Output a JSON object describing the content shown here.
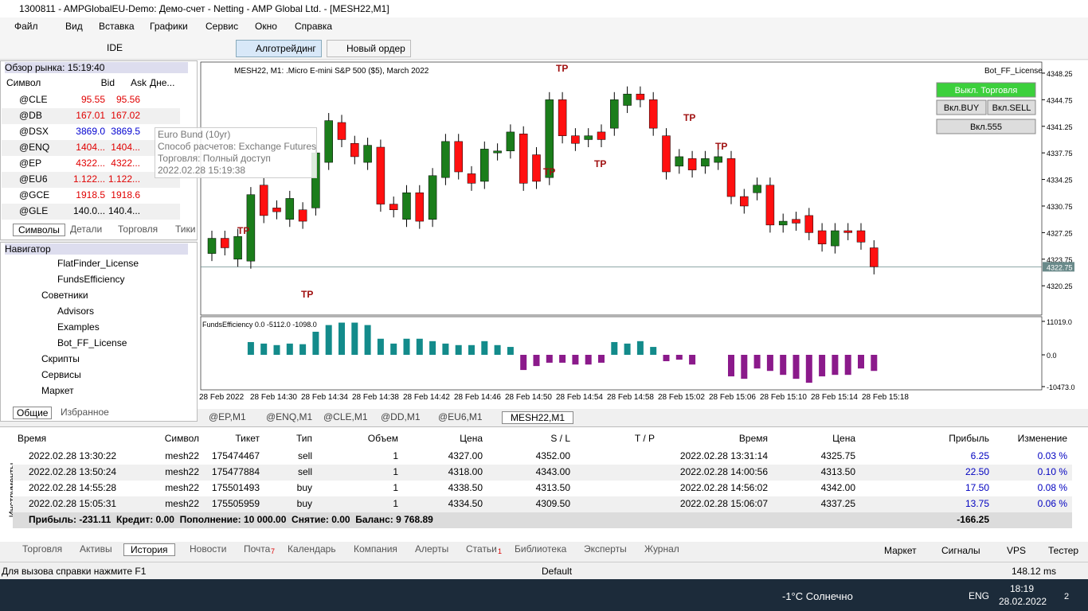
{
  "title_bar": {
    "title": "1300811 - AMPGlobalEU-Demo: Демо-счет - Netting - AMP Global Ltd. - [MESH22,M1]"
  },
  "menu": [
    "Файл",
    "Вид",
    "Вставка",
    "Графики",
    "Сервис",
    "Окно",
    "Справка"
  ],
  "toolbar": {
    "ide": "IDE",
    "algo": "Алготрейдинг",
    "new_order": "Новый ордер"
  },
  "market_watch": {
    "title": "Обзор рынка: 15:19:40",
    "columns": [
      "Символ",
      "Bid",
      "Ask",
      "Дне..."
    ],
    "rows": [
      {
        "symbol": "@CLE",
        "bid": "95.55",
        "ask": "95.56",
        "color": "#e00000"
      },
      {
        "symbol": "@DB",
        "bid": "167.01",
        "ask": "167.02",
        "color": "#e00000"
      },
      {
        "symbol": "@DSX",
        "bid": "3869.0",
        "ask": "3869.5",
        "color": "#0000d0"
      },
      {
        "symbol": "@ENQ",
        "bid": "1404...",
        "ask": "1404...",
        "color": "#e00000"
      },
      {
        "symbol": "@EP",
        "bid": "4322...",
        "ask": "4322...",
        "color": "#e00000"
      },
      {
        "symbol": "@EU6",
        "bid": "1.122...",
        "ask": "1.122...",
        "color": "#e00000"
      },
      {
        "symbol": "@GCE",
        "bid": "1918.5",
        "ask": "1918.6",
        "color": "#e00000"
      },
      {
        "symbol": "@GLE",
        "bid": "140.0...",
        "ask": "140.4...",
        "color": "#000000"
      }
    ],
    "tabs": [
      "Символы",
      "Детали",
      "Торговля",
      "Тики"
    ],
    "tooltip": [
      "Euro Bund (10yr)",
      "Способ расчетов: Exchange Futures",
      "Торговля: Полный доступ",
      "2022.02.28 15:19:38"
    ]
  },
  "navigator": {
    "title": "Навигатор",
    "items": [
      {
        "label": "FlatFinder_License",
        "level": 2
      },
      {
        "label": "FundsEfficiency",
        "level": 2
      },
      {
        "label": "Советники",
        "level": 1
      },
      {
        "label": "Advisors",
        "level": 2
      },
      {
        "label": "Examples",
        "level": 2
      },
      {
        "label": "Bot_FF_License",
        "level": 2
      },
      {
        "label": "Скрипты",
        "level": 1
      },
      {
        "label": "Сервисы",
        "level": 1
      },
      {
        "label": "Маркет",
        "level": 1
      }
    ],
    "tabs": [
      "Общие",
      "Избранное"
    ]
  },
  "chart": {
    "header": "MESH22, M1: .Micro E-mini S&P 500 ($5), March 2022",
    "expert": "Bot_FF_License",
    "buttons": [
      "Выкл. Торговля",
      "Вкл.BUY",
      "Вкл.SELL",
      "Вкл.555"
    ],
    "tp_label": "TP",
    "ylim": [
      4316.5,
      4349.5
    ],
    "yticks": [
      4348.25,
      4344.75,
      4341.25,
      4337.75,
      4334.25,
      4330.75,
      4327.25,
      4323.75,
      4320.25
    ],
    "last_price": 4322.75,
    "xticks": [
      "28 Feb 2022",
      "28 Feb 14:30",
      "28 Feb 14:34",
      "28 Feb 14:38",
      "28 Feb 14:42",
      "28 Feb 14:46",
      "28 Feb 14:50",
      "28 Feb 14:54",
      "28 Feb 14:58",
      "28 Feb 15:02",
      "28 Feb 15:06",
      "28 Feb 15:10",
      "28 Feb 15:14",
      "28 Feb 15:18"
    ],
    "up_color": "#1b7d1b",
    "down_color": "#ff1010",
    "candles": {
      "open": [
        4324.5,
        4326.5,
        4323.75,
        4323.5,
        4333.5,
        4330.5,
        4329,
        4330.25,
        4330.5,
        4336.5,
        4341.75,
        4339,
        4336.5,
        4338.5,
        4331,
        4329,
        4332.5,
        4329,
        4334.5,
        4339.25,
        4335,
        4334,
        4337.75,
        4338,
        4340.25,
        4337.5,
        4334.5,
        4344.75,
        4340,
        4339.5,
        4340.5,
        4341,
        4344,
        4345.5,
        4344.75,
        4340,
        4336,
        4337,
        4336,
        4336.5,
        4337,
        4332,
        4332.5,
        4333.5,
        4328.25,
        4329,
        4329.5,
        4327.5,
        4325.5,
        4327.5,
        4327.5,
        4325.25
      ],
      "high": [
        4327.5,
        4327.5,
        4327.75,
        4333.25,
        4334.5,
        4331.5,
        4332.75,
        4331.25,
        4338.75,
        4343,
        4342.75,
        4340,
        4339.75,
        4339.5,
        4332,
        4333.5,
        4333.5,
        4335.75,
        4340.25,
        4340.25,
        4336,
        4339.25,
        4339,
        4341.5,
        4341.25,
        4338.5,
        4345.75,
        4345.75,
        4341,
        4341,
        4341.5,
        4345.75,
        4346.5,
        4346.5,
        4345.75,
        4341,
        4338.25,
        4338,
        4338,
        4338.25,
        4338,
        4333,
        4334.5,
        4334.5,
        4329.75,
        4330,
        4330.5,
        4328.5,
        4328.5,
        4328.5,
        4328.5,
        4326.25
      ],
      "low": [
        4323.5,
        4324.25,
        4322.75,
        4322.5,
        4328.5,
        4329,
        4328,
        4327.75,
        4329.5,
        4335.5,
        4338.5,
        4336.25,
        4335.5,
        4330,
        4329.25,
        4328,
        4327.75,
        4328,
        4333.5,
        4334.25,
        4332.75,
        4333,
        4336.75,
        4337,
        4332.75,
        4333,
        4333.5,
        4339,
        4338,
        4338.5,
        4338.5,
        4340,
        4343,
        4343.75,
        4340,
        4334.25,
        4335,
        4334.5,
        4335,
        4335.5,
        4331,
        4329.75,
        4331.5,
        4327.25,
        4327.25,
        4327.5,
        4326.25,
        4324.75,
        4324.5,
        4326.25,
        4325,
        4321.75
      ],
      "close": [
        4326.5,
        4325.25,
        4326.75,
        4332.25,
        4329.5,
        4330,
        4331.75,
        4328.75,
        4337.75,
        4342,
        4339.5,
        4337.25,
        4338.75,
        4331,
        4330.25,
        4332.5,
        4328.75,
        4334.75,
        4339.25,
        4335.25,
        4333.75,
        4338.25,
        4338,
        4340.5,
        4333.75,
        4334,
        4344.75,
        4340,
        4339,
        4340,
        4339.5,
        4344.75,
        4345.5,
        4344.75,
        4341,
        4335.25,
        4337.25,
        4335.5,
        4337,
        4337.25,
        4332,
        4330.75,
        4333.5,
        4328.25,
        4328.75,
        4328.5,
        4327.25,
        4325.75,
        4327.5,
        4327.25,
        4326,
        4322.75
      ]
    },
    "indicator": {
      "label": "FundsEfficiency 0.0 -5112.0 -1098.0",
      "ylim": [
        -11530,
        12050
      ],
      "yticks": [
        {
          "value": 11019,
          "label": "11019.0"
        },
        {
          "value": 0,
          "label": "0.0"
        },
        {
          "value": -10473,
          "label": "-10473.0"
        }
      ],
      "pos_color": "#138b8b",
      "neg_color": "#8b1a8b",
      "values": [
        0,
        0,
        0,
        4200,
        3700,
        3200,
        3700,
        3500,
        7600,
        9800,
        10600,
        10600,
        9800,
        5300,
        3700,
        5300,
        5300,
        4500,
        3700,
        3200,
        3200,
        4500,
        3200,
        2600,
        -5000,
        -3700,
        -2600,
        -2600,
        -3200,
        -3200,
        -2600,
        4200,
        3700,
        4500,
        2600,
        -2100,
        -1600,
        -3200,
        0,
        0,
        -7100,
        -7900,
        -4500,
        -5300,
        -6600,
        -7900,
        -9200,
        -7100,
        -6600,
        -6600,
        -4500,
        -5300
      ]
    }
  },
  "chart_tabs": [
    "@EP,M1",
    "@ENQ,M1",
    "@CLE,M1",
    "@DD,M1",
    "@EU6,M1",
    "MESH22,M1"
  ],
  "terminal": {
    "side_label": "Инструменты",
    "columns": [
      "Время",
      "Символ",
      "Тикет",
      "Тип",
      "Объем",
      "Цена",
      "S / L",
      "T / P",
      "Время",
      "Цена",
      "Прибыль",
      "Изменение"
    ],
    "rows": [
      [
        "2022.02.28 13:30:22",
        "mesh22",
        "175474467",
        "sell",
        "1",
        "4327.00",
        "4352.00",
        "2022.02.28 13:31:14",
        "4325.75",
        "6.25",
        "0.03 %"
      ],
      [
        "2022.02.28 13:50:24",
        "mesh22",
        "175477884",
        "sell",
        "1",
        "4318.00",
        "4343.00",
        "2022.02.28 14:00:56",
        "4313.50",
        "22.50",
        "0.10 %"
      ],
      [
        "2022.02.28 14:55:28",
        "mesh22",
        "175501493",
        "buy",
        "1",
        "4338.50",
        "4313.50",
        "2022.02.28 14:56:02",
        "4342.00",
        "17.50",
        "0.08 %"
      ],
      [
        "2022.02.28 15:05:31",
        "mesh22",
        "175505959",
        "buy",
        "1",
        "4334.50",
        "4309.50",
        "2022.02.28 15:06:07",
        "4337.25",
        "13.75",
        "0.06 %"
      ]
    ],
    "summary": "Прибыль: -231.11  Кредит: 0.00  Пополнение: 10 000.00  Снятие: 0.00  Баланс: 9 768.89",
    "total": "-166.25",
    "tabs": [
      {
        "label": "Торговля"
      },
      {
        "label": "Активы"
      },
      {
        "label": "История"
      },
      {
        "label": "Новости"
      },
      {
        "label": "Почта",
        "badge": "7"
      },
      {
        "label": "Календарь"
      },
      {
        "label": "Компания"
      },
      {
        "label": "Алерты"
      },
      {
        "label": "Статьи",
        "badge": "1"
      },
      {
        "label": "Библиотека"
      },
      {
        "label": "Эксперты"
      },
      {
        "label": "Журнал"
      }
    ],
    "right_tabs": [
      "Маркет",
      "Сигналы",
      "VPS",
      "Тестер"
    ]
  },
  "status_bar": {
    "help": "Для вызова справки нажмите F1",
    "profile": "Default",
    "ping": "148.12 ms"
  },
  "taskbar": {
    "weather": "-1°C Солнечно",
    "lang": "ENG",
    "time": "18:19",
    "date": "28.02.2022",
    "notifications": "2"
  }
}
